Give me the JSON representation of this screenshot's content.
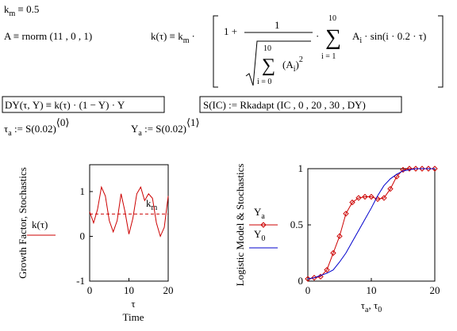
{
  "formulas": {
    "km": [
      "k",
      "m",
      " ≡ 0.5"
    ],
    "A": [
      "A ≡ rnorm (11 , 0 , 1)"
    ],
    "k": {
      "lhs": "k(τ) ≡ k",
      "lhs_sub": "m",
      "dot1": "·",
      "one_plus": "1 +",
      "num": "1",
      "sum1_top": "10",
      "sum1": "∑",
      "sum1_bottom": "i = 0",
      "a_open": "(A",
      "a_sub": "i",
      "a_close": ")",
      "a_pow": "2",
      "dot2": "·",
      "sum2_top": "10",
      "sum2": "∑",
      "sum2_bottom": "i = 1",
      "a2": "A",
      "a2_sub": "i",
      "sin": "· sin(i · 0.2 · τ)"
    },
    "DY": [
      "DY(τ, Y) ≡ k(τ) · (1 − Y) · Y"
    ],
    "S": [
      "S(IC) := Rkadapt (IC , 0 , 20 , 30 , DY)"
    ],
    "ta": [
      "τ",
      "a",
      " := S(0.02)",
      "⟨0⟩"
    ],
    "Ya": [
      "Y",
      "a",
      " := S(0.02)",
      "⟨1⟩"
    ]
  },
  "chart_data": [
    {
      "type": "line",
      "y_label": "Growth Factor, Stochastics",
      "x_label": "τ",
      "x_label2": "Time",
      "x": [
        0,
        1,
        2,
        3,
        4,
        5,
        6,
        7,
        8,
        9,
        10,
        11,
        12,
        13,
        14,
        15,
        16,
        17,
        18,
        19,
        20
      ],
      "series": [
        {
          "name": "k(τ)",
          "color": "#cc0000",
          "values": [
            0.55,
            0.3,
            0.6,
            1.1,
            0.9,
            0.35,
            0.1,
            0.35,
            0.95,
            0.55,
            0.05,
            0.4,
            0.95,
            1.1,
            0.8,
            0.95,
            0.85,
            0.3,
            0.0,
            0.2,
            0.9
          ]
        }
      ],
      "hlines": [
        {
          "value": 0.5,
          "label": "k",
          "label_sub": "m",
          "color": "#cc0000"
        }
      ],
      "xlim": [
        0,
        20
      ],
      "xticks": [
        0,
        10,
        20
      ],
      "ylim": [
        -1,
        1.6
      ],
      "yticks": [
        -1,
        0,
        1
      ]
    },
    {
      "type": "line",
      "y_label": "Logistic Model & Stochastics",
      "x_label": [
        "τ",
        "a",
        ", τ",
        "0"
      ],
      "x": [
        0,
        1,
        2,
        3,
        4,
        5,
        6,
        7,
        8,
        9,
        10,
        11,
        12,
        13,
        14,
        15,
        16,
        17,
        18,
        19,
        20
      ],
      "series": [
        {
          "name": "Y",
          "name_sub": "a",
          "color": "#cc0000",
          "marker": true,
          "values": [
            0.02,
            0.03,
            0.04,
            0.1,
            0.25,
            0.4,
            0.6,
            0.7,
            0.74,
            0.75,
            0.75,
            0.73,
            0.74,
            0.82,
            0.93,
            0.99,
            1,
            1,
            1,
            1,
            1
          ]
        },
        {
          "name": "Y",
          "name_sub": "0",
          "color": "#0000cc",
          "values": [
            0.02,
            0.03,
            0.05,
            0.07,
            0.1,
            0.17,
            0.25,
            0.35,
            0.45,
            0.55,
            0.65,
            0.76,
            0.85,
            0.91,
            0.95,
            0.98,
            0.99,
            1,
            1,
            1,
            1
          ]
        }
      ],
      "xlim": [
        0,
        20
      ],
      "xticks": [
        0,
        10,
        20
      ],
      "ylim": [
        0,
        1
      ],
      "yticks": [
        0,
        0.5,
        1
      ]
    }
  ]
}
